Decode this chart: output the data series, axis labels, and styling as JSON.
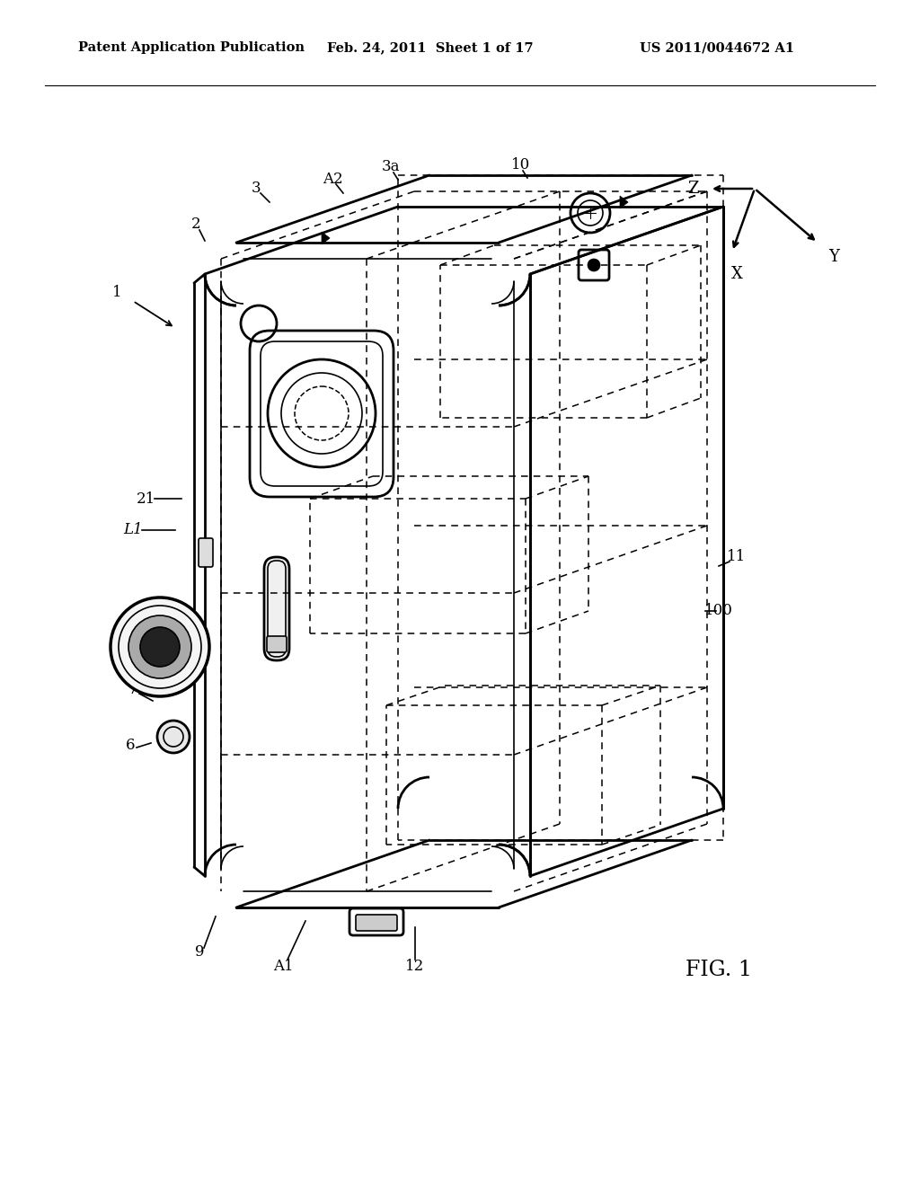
{
  "bg_color": "#ffffff",
  "header_left": "Patent Application Publication",
  "header_mid": "Feb. 24, 2011  Sheet 1 of 17",
  "header_right": "US 2011/0044672 A1",
  "fig_label": "FIG. 1",
  "lw_main": 2.0,
  "lw_thin": 1.2,
  "lw_dash": 1.1
}
